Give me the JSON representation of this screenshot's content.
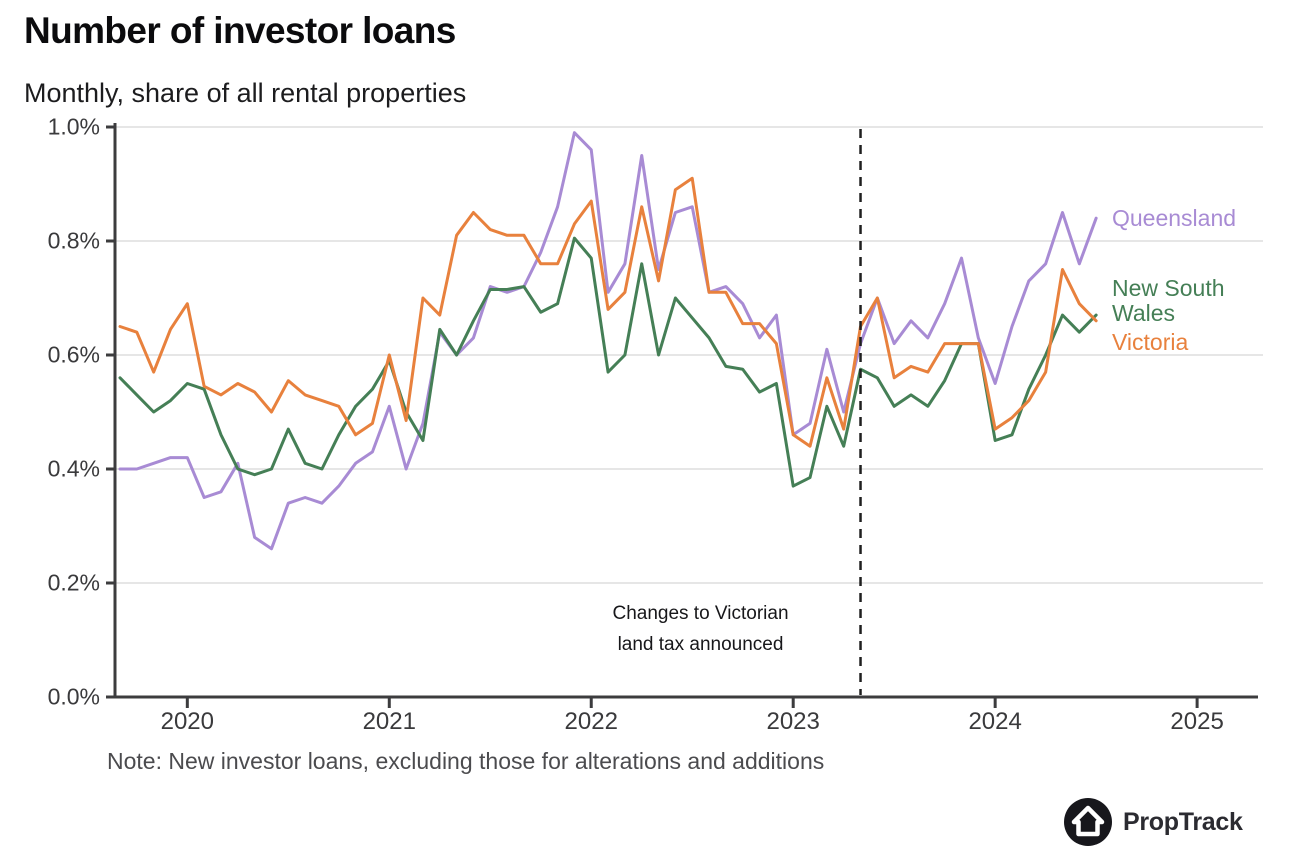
{
  "header": {
    "title": "Number of investor loans",
    "subtitle": "Monthly, share of all rental properties"
  },
  "note": {
    "text": "Note: New investor loans, excluding those for alterations and additions"
  },
  "logo": {
    "brand": "PropTrack"
  },
  "chart_data": {
    "type": "line",
    "unit": "percent share of all rental properties",
    "ylim": [
      0.0,
      1.0
    ],
    "grid": "horizontal",
    "legend_position": "right-of-plot, at line ends",
    "y_ticks": [
      "0.0%",
      "0.2%",
      "0.4%",
      "0.6%",
      "0.8%",
      "1.0%"
    ],
    "y_tick_values": [
      0.0,
      0.2,
      0.4,
      0.6,
      0.8,
      1.0
    ],
    "x_ticks": [
      "2020",
      "2021",
      "2022",
      "2023",
      "2024",
      "2025"
    ],
    "annotation": {
      "line1": "Changes to Victorian",
      "line2": "land tax announced",
      "dashed_line_month": "2023-05"
    },
    "months": [
      "2019-09",
      "2019-10",
      "2019-11",
      "2019-12",
      "2020-01",
      "2020-02",
      "2020-03",
      "2020-04",
      "2020-05",
      "2020-06",
      "2020-07",
      "2020-08",
      "2020-09",
      "2020-10",
      "2020-11",
      "2020-12",
      "2021-01",
      "2021-02",
      "2021-03",
      "2021-04",
      "2021-05",
      "2021-06",
      "2021-07",
      "2021-08",
      "2021-09",
      "2021-10",
      "2021-11",
      "2021-12",
      "2022-01",
      "2022-02",
      "2022-03",
      "2022-04",
      "2022-05",
      "2022-06",
      "2022-07",
      "2022-08",
      "2022-09",
      "2022-10",
      "2022-11",
      "2022-12",
      "2023-01",
      "2023-02",
      "2023-03",
      "2023-04",
      "2023-05",
      "2023-06",
      "2023-07",
      "2023-08",
      "2023-09",
      "2023-10",
      "2023-11",
      "2023-12",
      "2024-01",
      "2024-02",
      "2024-03",
      "2024-04",
      "2024-05",
      "2024-06",
      "2024-07"
    ],
    "series": [
      {
        "name": "Queensland",
        "color": "#a88bd4",
        "values": [
          0.4,
          0.4,
          0.41,
          0.42,
          0.42,
          0.35,
          0.36,
          0.41,
          0.28,
          0.26,
          0.34,
          0.35,
          0.34,
          0.37,
          0.41,
          0.43,
          0.51,
          0.4,
          0.48,
          0.64,
          0.6,
          0.63,
          0.72,
          0.71,
          0.72,
          0.78,
          0.86,
          0.99,
          0.96,
          0.71,
          0.76,
          0.95,
          0.75,
          0.85,
          0.86,
          0.71,
          0.72,
          0.69,
          0.63,
          0.67,
          0.46,
          0.48,
          0.61,
          0.5,
          0.62,
          0.7,
          0.62,
          0.66,
          0.63,
          0.69,
          0.77,
          0.63,
          0.55,
          0.65,
          0.73,
          0.76,
          0.85,
          0.76,
          0.84
        ]
      },
      {
        "name": "New South Wales",
        "color": "#457f56",
        "values": [
          0.56,
          0.53,
          0.5,
          0.52,
          0.55,
          0.54,
          0.46,
          0.4,
          0.39,
          0.4,
          0.47,
          0.41,
          0.4,
          0.46,
          0.51,
          0.54,
          0.59,
          0.5,
          0.45,
          0.645,
          0.6,
          0.66,
          0.715,
          0.715,
          0.72,
          0.675,
          0.69,
          0.805,
          0.77,
          0.57,
          0.6,
          0.76,
          0.6,
          0.7,
          0.665,
          0.63,
          0.58,
          0.575,
          0.535,
          0.55,
          0.37,
          0.385,
          0.51,
          0.44,
          0.575,
          0.56,
          0.51,
          0.53,
          0.51,
          0.555,
          0.62,
          0.62,
          0.45,
          0.46,
          0.54,
          0.6,
          0.67,
          0.64,
          0.67
        ]
      },
      {
        "name": "Victoria",
        "color": "#e8813d",
        "values": [
          0.65,
          0.64,
          0.57,
          0.645,
          0.69,
          0.545,
          0.53,
          0.55,
          0.535,
          0.5,
          0.555,
          0.53,
          0.52,
          0.51,
          0.46,
          0.48,
          0.6,
          0.485,
          0.7,
          0.67,
          0.81,
          0.85,
          0.82,
          0.81,
          0.81,
          0.76,
          0.76,
          0.83,
          0.87,
          0.68,
          0.71,
          0.86,
          0.73,
          0.89,
          0.91,
          0.71,
          0.71,
          0.655,
          0.655,
          0.62,
          0.46,
          0.44,
          0.56,
          0.47,
          0.65,
          0.7,
          0.56,
          0.58,
          0.57,
          0.62,
          0.62,
          0.62,
          0.47,
          0.49,
          0.52,
          0.57,
          0.75,
          0.69,
          0.66
        ]
      }
    ],
    "colors": {
      "axis": "#3c3c3e",
      "grid": "#e6e6e6",
      "dashed_line": "#1f1f1f"
    }
  }
}
